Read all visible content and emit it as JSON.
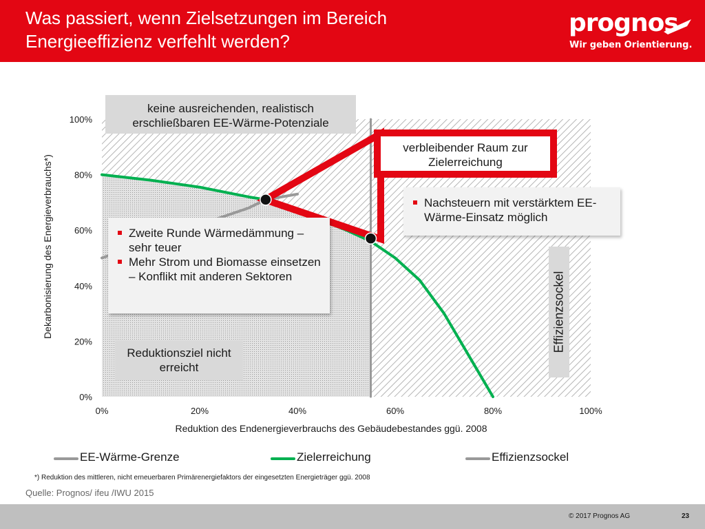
{
  "header": {
    "title": "Was passiert, wenn Zielsetzungen im Bereich Energieeffizienz verfehlt werden?",
    "logo_text": "prognos",
    "logo_tagline": "Wir geben Orientierung.",
    "color": "#e30613"
  },
  "chart_data": {
    "type": "line",
    "xlabel": "Reduktion des Endenergieverbrauchs des Gebäudebestandes ggü. 2008",
    "ylabel": "Dekarbonisierung des Energieverbrauchs*)",
    "xlim": [
      0,
      100
    ],
    "ylim": [
      0,
      100
    ],
    "x_ticks": [
      "0%",
      "20%",
      "40%",
      "60%",
      "80%",
      "100%"
    ],
    "y_ticks": [
      "0%",
      "20%",
      "40%",
      "60%",
      "80%",
      "100%"
    ],
    "grid": false,
    "legend_position": "bottom",
    "series": [
      {
        "name": "EE-Wärme-Grenze",
        "color": "#999999",
        "x": [
          0,
          10,
          20,
          30,
          33.5,
          40
        ],
        "y": [
          50,
          56,
          62,
          68,
          71,
          73
        ]
      },
      {
        "name": "Zielerreichung",
        "color": "#00b050",
        "x": [
          0,
          10,
          20,
          30,
          33.5,
          40,
          50,
          55,
          60,
          65,
          70,
          75,
          80
        ],
        "y": [
          80,
          78,
          75.5,
          72,
          71,
          67,
          60,
          56,
          50,
          42,
          30,
          15,
          0
        ]
      },
      {
        "name": "Effizienzsockel",
        "color": "#999999",
        "x": [
          55,
          55
        ],
        "y": [
          0,
          100
        ]
      }
    ],
    "markers": [
      {
        "x": 33.5,
        "y": 71
      },
      {
        "x": 55,
        "y": 57
      }
    ],
    "annotations": {
      "top_box": "keine ausreichenden, realistisch erschließbaren EE-Wärme-Potenziale",
      "red_box": "verbleibender Raum zur Zielerreichung",
      "right_callout": [
        "Nachsteuern mit verstärktem EE-Wärme-Einsatz möglich"
      ],
      "left_callout": [
        "Zweite Runde Wärmedämmung – sehr teuer",
        "Mehr Strom und Biomasse einsetzen – Konflikt mit anderen Sektoren"
      ],
      "bottom_box": "Reduktionsziel nicht erreicht",
      "vertical_label": "Effizienzsockel"
    },
    "colors": {
      "accent": "#e30613",
      "green": "#00b050",
      "grey": "#999999",
      "hatch": "#c8c8c8"
    }
  },
  "legend": [
    {
      "label": "EE-Wärme-Grenze",
      "color": "#999999"
    },
    {
      "label": "Zielerreichung",
      "color": "#00b050"
    },
    {
      "label": "Effizienzsockel",
      "color": "#999999"
    }
  ],
  "footnote": "*) Reduktion des mittleren, nicht erneuerbaren Primärenergiefaktors der eingesetzten Energieträger ggü. 2008",
  "source": "Quelle: Prognos/ ifeu /IWU 2015",
  "footer": {
    "copyright": "© 2017 Prognos AG",
    "page": "23"
  }
}
